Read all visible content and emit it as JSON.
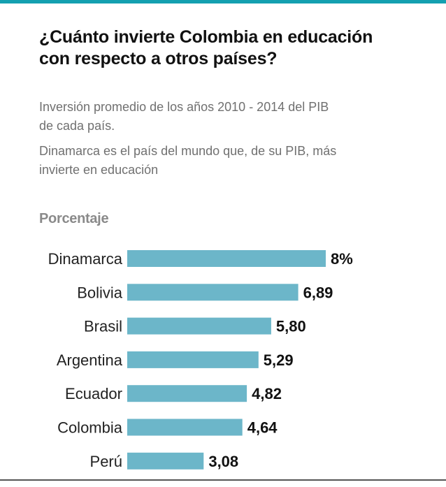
{
  "header": {
    "title_line1": "¿Cuánto invierte Colombia en educación",
    "title_line2": "con respecto a otros países?",
    "subtitle_line1": "Inversión promedio de los años 2010 - 2014 del PIB",
    "subtitle_line2": "de cada país.",
    "subtitle2_line1": "Dinamarca es el país del mundo que, de su PIB, más",
    "subtitle2_line2": "invierte en educación"
  },
  "colors": {
    "accent_rule": "#14a0b0",
    "bar": "#6cb6c9"
  },
  "chart_data": {
    "type": "bar",
    "orientation": "horizontal",
    "title": "¿Cuánto invierte Colombia en educación con respecto a otros países?",
    "ylabel": "Porcentaje",
    "categories": [
      "Dinamarca",
      "Bolivia",
      "Brasil",
      "Argentina",
      "Ecuador",
      "Colombia",
      "Perú"
    ],
    "values": [
      8,
      6.89,
      5.8,
      5.29,
      4.82,
      4.64,
      3.08
    ],
    "value_labels": [
      "8%",
      "6,89",
      "5,80",
      "5,29",
      "4,82",
      "4,64",
      "3,08"
    ],
    "xlim": [
      0,
      8
    ],
    "grid": false,
    "legend": "none"
  }
}
